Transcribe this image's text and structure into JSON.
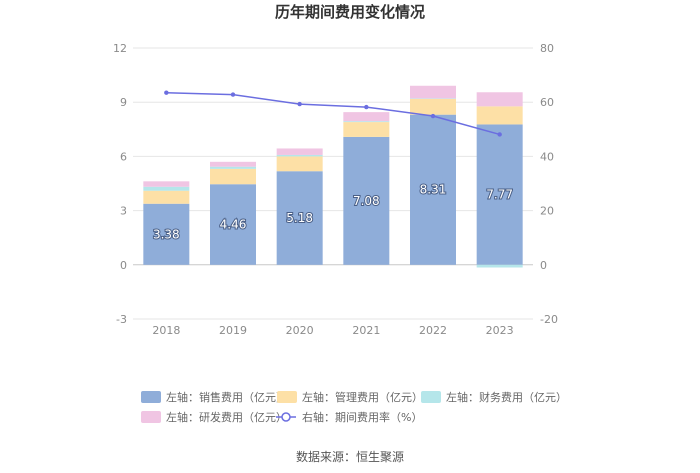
{
  "chart_data": {
    "type": "bar",
    "title": "历年期间费用变化情况",
    "source": "数据来源：恒生聚源",
    "categories": [
      "2018",
      "2019",
      "2020",
      "2021",
      "2022",
      "2023"
    ],
    "y_left": {
      "ticks": [
        "12",
        "9",
        "6",
        "3",
        "0",
        "-3"
      ],
      "range": [
        -3,
        12
      ]
    },
    "y_right": {
      "ticks": [
        "80",
        "60",
        "40",
        "20",
        "0",
        "-20"
      ],
      "range": [
        -20,
        80
      ]
    },
    "grid": true,
    "legend_position": "bottom",
    "series": [
      {
        "name": "左轴：销售费用（亿元）",
        "axis": "left",
        "stack": true,
        "color": "#8fadd9",
        "values": [
          3.38,
          4.46,
          5.18,
          7.08,
          8.31,
          7.77
        ],
        "show_labels": true
      },
      {
        "name": "左轴：管理费用（亿元）",
        "axis": "left",
        "stack": true,
        "color": "#fde0a6",
        "values": [
          0.72,
          0.85,
          0.82,
          0.82,
          0.88,
          1.0
        ],
        "show_labels": false
      },
      {
        "name": "左轴：财务费用（亿元）",
        "axis": "left",
        "stack": true,
        "color": "#b5e6ea",
        "values": [
          0.22,
          0.12,
          0.08,
          0.05,
          0.02,
          -0.15
        ],
        "show_labels": false
      },
      {
        "name": "左轴：研发费用（亿元）",
        "axis": "left",
        "stack": true,
        "color": "#f0c5e3",
        "values": [
          0.3,
          0.27,
          0.36,
          0.5,
          0.7,
          0.78
        ],
        "show_labels": false
      },
      {
        "name": "右轴：期间费用率（%）",
        "axis": "right",
        "type": "line",
        "color": "#6b6ee0",
        "values": [
          63.5,
          62.8,
          59.3,
          58.2,
          54.9,
          48.1
        ],
        "show_labels": false
      }
    ]
  }
}
